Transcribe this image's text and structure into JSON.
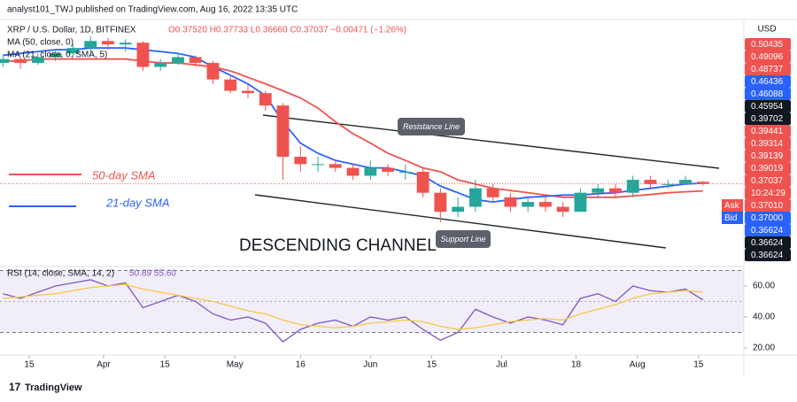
{
  "chart_data": {
    "type": "candlestick",
    "header": "analyst101_TWJ published on TradingView.com, Aug 16, 2022 13:35 UTC",
    "symbol": "XRP / U.S. Dollar, 1D, BITFINEX",
    "ohlc_text": "O0.37520 H0.37733 L0.36660 C0.37037 −0.00471 (−1.26%)",
    "axis_unit": "USD",
    "log_scale": true,
    "ylim": [
      0.22,
      1.02
    ],
    "xlim": [
      -6.68,
      163.36
    ],
    "xticks": [
      {
        "value": 0,
        "label": "15"
      },
      {
        "value": 17,
        "label": "Apr"
      },
      {
        "value": 31,
        "label": "15"
      },
      {
        "value": 47,
        "label": "May"
      },
      {
        "value": 62,
        "label": "16"
      },
      {
        "value": 78,
        "label": "Jun"
      },
      {
        "value": 92,
        "label": "15"
      },
      {
        "value": 108,
        "label": "Jul"
      },
      {
        "value": 125,
        "label": "18"
      },
      {
        "value": 139,
        "label": "Aug"
      },
      {
        "value": 153,
        "label": "15"
      }
    ],
    "up_color": "#26a69a",
    "down_color": "#ef5350",
    "x": [
      -6,
      -2,
      2,
      6,
      10,
      14,
      18,
      22,
      26,
      30,
      34,
      38,
      42,
      46,
      50,
      54,
      58,
      62,
      66,
      70,
      74,
      78,
      82,
      86,
      90,
      94,
      98,
      102,
      106,
      110,
      114,
      118,
      122,
      126,
      130,
      134,
      138,
      142,
      146,
      150,
      154
    ],
    "ohlc": [
      [
        0.8,
        0.84,
        0.78,
        0.82
      ],
      [
        0.82,
        0.83,
        0.77,
        0.8
      ],
      [
        0.8,
        0.85,
        0.79,
        0.83
      ],
      [
        0.83,
        0.87,
        0.81,
        0.85
      ],
      [
        0.85,
        0.9,
        0.83,
        0.88
      ],
      [
        0.88,
        0.95,
        0.86,
        0.92
      ],
      [
        0.92,
        0.94,
        0.87,
        0.9
      ],
      [
        0.9,
        0.93,
        0.86,
        0.91
      ],
      [
        0.91,
        0.92,
        0.76,
        0.78
      ],
      [
        0.78,
        0.82,
        0.76,
        0.8
      ],
      [
        0.8,
        0.85,
        0.79,
        0.83
      ],
      [
        0.83,
        0.84,
        0.78,
        0.8
      ],
      [
        0.8,
        0.81,
        0.7,
        0.72
      ],
      [
        0.72,
        0.74,
        0.66,
        0.67
      ],
      [
        0.67,
        0.7,
        0.64,
        0.66
      ],
      [
        0.66,
        0.67,
        0.59,
        0.61
      ],
      [
        0.61,
        0.62,
        0.38,
        0.44
      ],
      [
        0.44,
        0.47,
        0.4,
        0.42
      ],
      [
        0.42,
        0.44,
        0.4,
        0.42
      ],
      [
        0.42,
        0.43,
        0.4,
        0.41
      ],
      [
        0.41,
        0.42,
        0.38,
        0.39
      ],
      [
        0.39,
        0.43,
        0.38,
        0.41
      ],
      [
        0.41,
        0.42,
        0.39,
        0.4
      ],
      [
        0.4,
        0.42,
        0.38,
        0.4
      ],
      [
        0.4,
        0.41,
        0.34,
        0.35
      ],
      [
        0.35,
        0.36,
        0.29,
        0.31
      ],
      [
        0.31,
        0.34,
        0.3,
        0.32
      ],
      [
        0.32,
        0.38,
        0.31,
        0.36
      ],
      [
        0.36,
        0.37,
        0.33,
        0.34
      ],
      [
        0.34,
        0.35,
        0.31,
        0.32
      ],
      [
        0.32,
        0.34,
        0.31,
        0.33
      ],
      [
        0.33,
        0.34,
        0.31,
        0.32
      ],
      [
        0.32,
        0.33,
        0.3,
        0.31
      ],
      [
        0.31,
        0.36,
        0.31,
        0.35
      ],
      [
        0.35,
        0.37,
        0.34,
        0.36
      ],
      [
        0.36,
        0.37,
        0.34,
        0.35
      ],
      [
        0.35,
        0.39,
        0.34,
        0.38
      ],
      [
        0.38,
        0.39,
        0.36,
        0.37
      ],
      [
        0.37,
        0.38,
        0.36,
        0.37
      ],
      [
        0.37,
        0.39,
        0.37,
        0.38
      ],
      [
        0.3752,
        0.37733,
        0.3666,
        0.37037
      ]
    ],
    "series": [
      {
        "name": "MA (50, close, 0)",
        "color": "#ef5350",
        "values": [
          0.81,
          0.81,
          0.82,
          0.82,
          0.82,
          0.82,
          0.82,
          0.82,
          0.81,
          0.8,
          0.8,
          0.79,
          0.78,
          0.76,
          0.73,
          0.7,
          0.67,
          0.64,
          0.6,
          0.55,
          0.51,
          0.48,
          0.45,
          0.43,
          0.41,
          0.4,
          0.38,
          0.37,
          0.36,
          0.355,
          0.35,
          0.345,
          0.34,
          0.34,
          0.34,
          0.34,
          0.343,
          0.346,
          0.35,
          0.352,
          0.354
        ]
      },
      {
        "name": "MA (21, close, 0, SMA, 5)",
        "color": "#2962ff",
        "values": [
          0.84,
          0.85,
          0.86,
          0.87,
          0.87,
          0.88,
          0.88,
          0.88,
          0.87,
          0.86,
          0.85,
          0.83,
          0.78,
          0.74,
          0.7,
          0.65,
          0.55,
          0.48,
          0.45,
          0.43,
          0.42,
          0.41,
          0.41,
          0.4,
          0.39,
          0.365,
          0.35,
          0.335,
          0.33,
          0.335,
          0.34,
          0.342,
          0.345,
          0.345,
          0.348,
          0.35,
          0.355,
          0.36,
          0.365,
          0.37,
          0.372
        ]
      }
    ],
    "annotations": {
      "sma50": "50-day SMA",
      "sma21": "21-day SMA",
      "resistance": "Resistance Line",
      "support": "Support Line",
      "channel": "DESCENDING CHANNEL"
    },
    "price_badges": [
      {
        "label": "0.50435",
        "color": "#ef5350"
      },
      {
        "label": "0.49096",
        "color": "#ef5350"
      },
      {
        "label": "0.48737",
        "color": "#ef5350"
      },
      {
        "label": "0.46436",
        "color": "#2962ff"
      },
      {
        "label": "0.46088",
        "color": "#2962ff"
      },
      {
        "label": "0.45954",
        "color": "#131722"
      },
      {
        "label": "0.39702",
        "color": "#131722"
      },
      {
        "label": "0.39441",
        "color": "#ef5350"
      },
      {
        "label": "0.39314",
        "color": "#ef5350"
      },
      {
        "label": "0.39139",
        "color": "#ef5350"
      },
      {
        "label": "0.39019",
        "color": "#ef5350"
      },
      {
        "label": "0.37037",
        "color": "#ef5350"
      },
      {
        "label": "10:24:29",
        "color": "#ef5350"
      },
      {
        "label": "0.37010",
        "color": "#ef5350"
      },
      {
        "label": "0.37000",
        "color": "#2962ff"
      },
      {
        "label": "0.36624",
        "color": "#2962ff"
      },
      {
        "label": "0.36624",
        "color": "#131722"
      },
      {
        "label": "0.36624",
        "color": "#131722"
      }
    ],
    "ask": "Ask",
    "bid": "Bid",
    "rsi": {
      "name": "RSI (14, close, SMA, 14, 2)",
      "values_text": "50.89  55.60",
      "ylim": [
        16,
        71.4
      ],
      "yticks": [
        {
          "value": 20,
          "label": "20.00"
        },
        {
          "value": 40,
          "label": "40.00"
        },
        {
          "value": 60,
          "label": "60.00"
        }
      ],
      "bands": [
        30,
        70
      ],
      "middle": 50,
      "series": [
        {
          "color": "#7e57c2",
          "values": [
            55,
            52,
            56,
            60,
            62,
            64,
            60,
            62,
            46,
            50,
            54,
            50,
            42,
            38,
            40,
            36,
            24,
            32,
            36,
            38,
            34,
            40,
            38,
            40,
            32,
            25,
            30,
            45,
            40,
            36,
            40,
            38,
            35,
            52,
            55,
            50,
            60,
            57,
            56,
            58,
            51
          ]
        },
        {
          "color": "#f5c842",
          "values": [
            52,
            53,
            54,
            55,
            57,
            59,
            60,
            61,
            58,
            56,
            54,
            52,
            50,
            47,
            44,
            42,
            38,
            35,
            34,
            33,
            34,
            36,
            37,
            38,
            37,
            34,
            32,
            33,
            35,
            37,
            38,
            39,
            38,
            42,
            45,
            48,
            52,
            55,
            56,
            57,
            56
          ]
        }
      ]
    },
    "footer": "TradingView"
  }
}
